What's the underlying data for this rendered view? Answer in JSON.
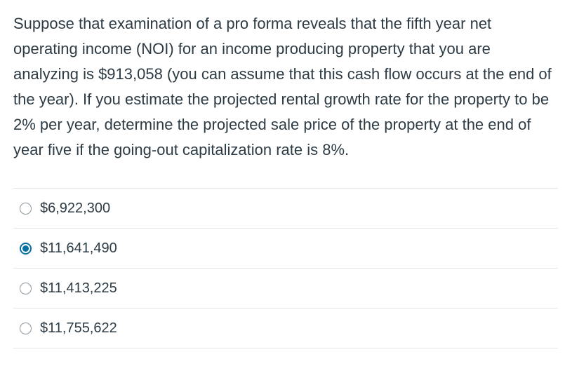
{
  "question": {
    "text": "Suppose that examination of a pro forma reveals that the fifth year net operating income (NOI) for an income producing property that you are analyzing is $913,058 (you can assume that this cash flow occurs at the end of the year). If you estimate the projected rental growth rate for the property to be 2% per year, determine the projected sale price of the property at the end of year five if the going-out capitalization rate is 8%."
  },
  "answers": [
    {
      "label": "$6,922,300",
      "selected": false
    },
    {
      "label": "$11,641,490",
      "selected": true
    },
    {
      "label": "$11,413,225",
      "selected": false
    },
    {
      "label": "$11,755,622",
      "selected": false
    }
  ],
  "colors": {
    "text": "#2d3b45",
    "accent": "#0770a3",
    "divider": "#e6e6e6",
    "radio_border": "#8b969e"
  }
}
